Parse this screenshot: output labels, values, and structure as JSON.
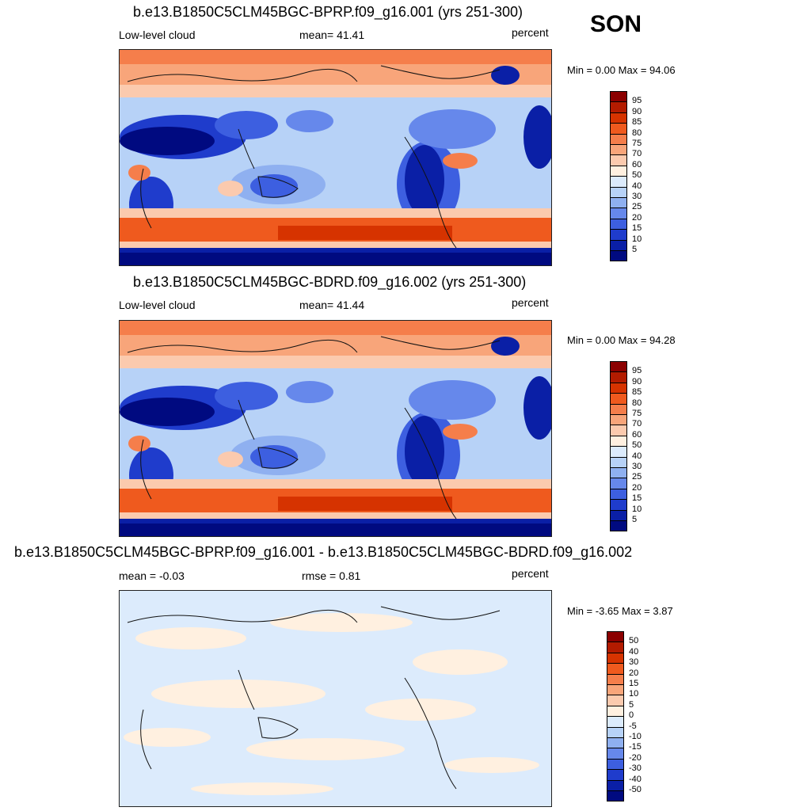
{
  "season": "SON",
  "panels": [
    {
      "title": "b.e13.B1850C5CLM45BGC-BPRP.f09_g16.001 (yrs 251-300)",
      "left_label": "Low-level cloud",
      "center_label": "mean=  41.41",
      "right_label": "percent",
      "minmax": "Min =   0.00 Max =  94.06",
      "colorbar_labels": [
        "95",
        "90",
        "85",
        "80",
        "75",
        "70",
        "60",
        "50",
        "40",
        "30",
        "25",
        "20",
        "15",
        "10",
        "5"
      ]
    },
    {
      "title": "b.e13.B1850C5CLM45BGC-BDRD.f09_g16.002 (yrs 251-300)",
      "left_label": "Low-level cloud",
      "center_label": "mean=  41.44",
      "right_label": "percent",
      "minmax": "Min =   0.00 Max =  94.28",
      "colorbar_labels": [
        "95",
        "90",
        "85",
        "80",
        "75",
        "70",
        "60",
        "50",
        "40",
        "30",
        "25",
        "20",
        "15",
        "10",
        "5"
      ]
    },
    {
      "title": "b.e13.B1850C5CLM45BGC-BPRP.f09_g16.001 - b.e13.B1850C5CLM45BGC-BDRD.f09_g16.002",
      "left_label": "mean =  -0.03",
      "center_label": "rmse =   0.81",
      "right_label": "percent",
      "minmax": "Min =  -3.65 Max =   3.87",
      "colorbar_labels": [
        "50",
        "40",
        "30",
        "20",
        "15",
        "10",
        "5",
        "0",
        "-5",
        "-10",
        "-15",
        "-20",
        "-30",
        "-40",
        "-50"
      ]
    }
  ],
  "colorbar_colors": [
    "#8b0000",
    "#b31b00",
    "#d63300",
    "#ef5a1e",
    "#f57e4b",
    "#f8a57a",
    "#fbcaae",
    "#fff0e0",
    "#dcebfc",
    "#b7d2f7",
    "#8fb0f0",
    "#6688eb",
    "#3d5fe0",
    "#1f3ccc",
    "#0a1fa6",
    "#000a80"
  ]
}
